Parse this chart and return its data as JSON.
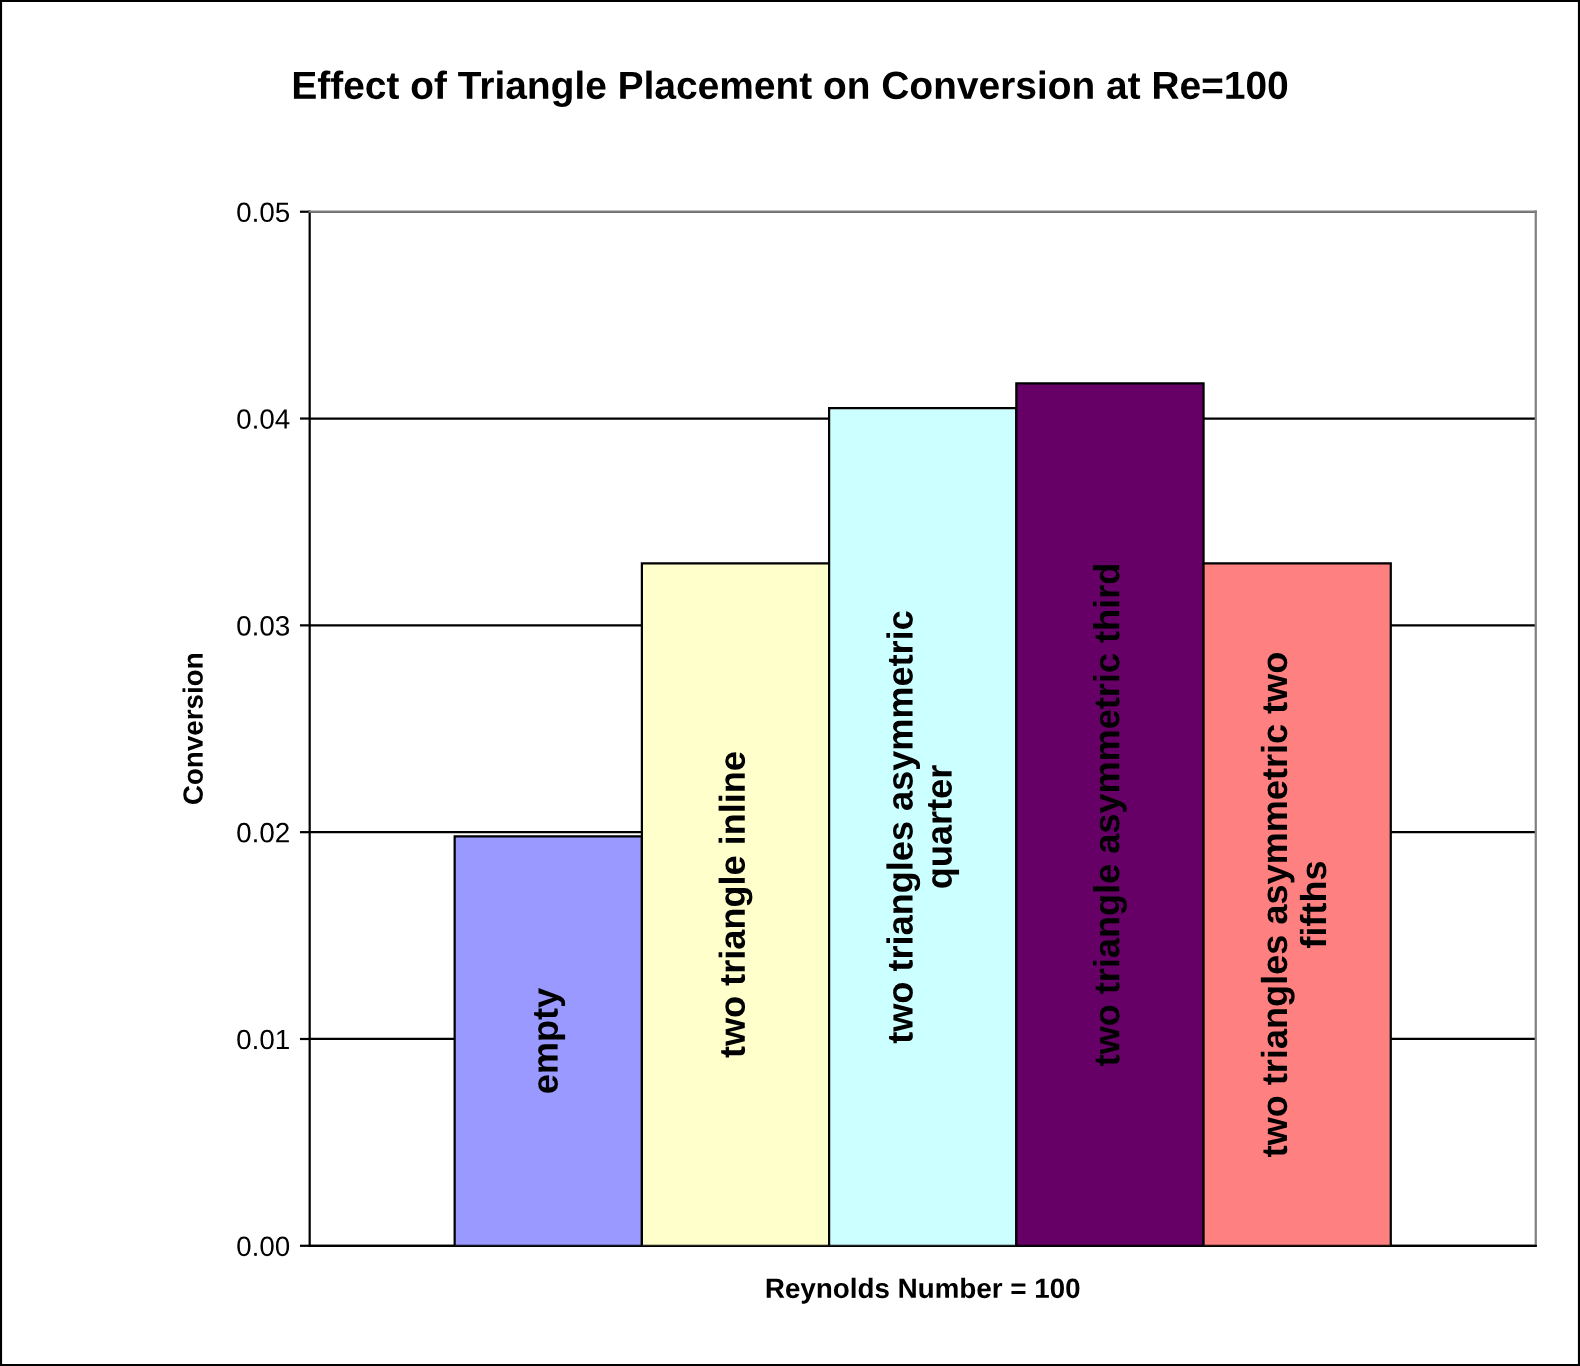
{
  "chart_data": {
    "type": "bar",
    "title": "Effect of Triangle Placement on Conversion at Re=100",
    "xlabel": "Reynolds Number = 100",
    "ylabel": "Conversion",
    "categories": [
      null
    ],
    "series": [
      {
        "name": "empty",
        "color": "#9999ff",
        "values": [
          0.0198
        ]
      },
      {
        "name": "two triangle inline",
        "color": "#ffffcc",
        "values": [
          0.033
        ]
      },
      {
        "name": "two triangles asymmetric\nquarter",
        "color": "#ccffff",
        "values": [
          0.0405
        ]
      },
      {
        "name": "two triangle asymmetric third",
        "color": "#660066",
        "values": [
          0.0417
        ]
      },
      {
        "name": "two triangles asymmetric two\nfifths",
        "color": "#ff8080",
        "values": [
          0.033
        ]
      }
    ],
    "ylim": [
      0,
      0.05
    ],
    "yticks": [
      {
        "value": 0,
        "label": "0.00"
      },
      {
        "value": 0.01,
        "label": "0.01"
      },
      {
        "value": 0.02,
        "label": "0.02"
      },
      {
        "value": 0.03,
        "label": "0.03"
      },
      {
        "value": 0.04,
        "label": "0.04"
      },
      {
        "value": 0.05,
        "label": "0.05"
      }
    ],
    "grid": "y",
    "legend": false
  }
}
